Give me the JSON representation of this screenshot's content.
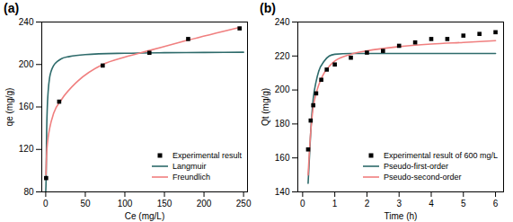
{
  "chart_data": [
    {
      "type": "line",
      "title": "(a)",
      "x_label": "Ce (mg/L)",
      "y_label": "qe (mg/g)",
      "xlim": [
        -5,
        255
      ],
      "xticks": [
        0,
        50,
        100,
        150,
        200,
        250
      ],
      "ylim": [
        80,
        240
      ],
      "yticks": [
        80,
        120,
        160,
        200,
        240
      ],
      "grid": false,
      "legend": "lower right",
      "series": [
        {
          "name": "Experimental result",
          "type": "scatter",
          "marker": "square",
          "color": "#000000",
          "x": [
            0.5,
            17,
            72,
            131,
            180,
            245
          ],
          "values": [
            93,
            165,
            199,
            211,
            224,
            234
          ]
        },
        {
          "name": "Langmuir",
          "type": "line",
          "line_style": "solid",
          "color": "#2e6b6b",
          "x": [
            0,
            0.5,
            1,
            2,
            3,
            5,
            7,
            10,
            15,
            20,
            30,
            50,
            100,
            150,
            200,
            250
          ],
          "values": [
            80,
            93,
            129,
            160,
            174,
            188,
            194,
            199,
            203,
            205.5,
            207.5,
            209.3,
            210.6,
            211.1,
            211.3,
            211.5
          ]
        },
        {
          "name": "Freundlich",
          "type": "line",
          "line_style": "solid",
          "color": "#f07f7f",
          "x": [
            0.3,
            1,
            3,
            5,
            10,
            20,
            40,
            72,
            100,
            130,
            180,
            245
          ],
          "values": [
            96,
            113,
            131,
            140,
            154,
            167,
            184,
            200,
            207,
            213,
            223,
            235
          ]
        }
      ]
    },
    {
      "type": "line",
      "title": "(b)",
      "x_label": "Time (h)",
      "y_label": "Qt (mg/g)",
      "xlim": [
        -0.15,
        6.25
      ],
      "xticks": [
        0,
        1,
        2,
        3,
        4,
        5,
        6
      ],
      "ylim": [
        140,
        240
      ],
      "yticks": [
        140,
        160,
        180,
        200,
        220,
        240
      ],
      "grid": false,
      "legend": "lower right",
      "series": [
        {
          "name": "Experimental result of 600 mg/L",
          "type": "scatter",
          "marker": "square",
          "color": "#000000",
          "x": [
            0.17,
            0.25,
            0.33,
            0.42,
            0.58,
            0.75,
            1,
            1.5,
            2,
            2.5,
            3,
            3.5,
            4,
            4.5,
            5,
            5.5,
            6
          ],
          "values": [
            165,
            182,
            191,
            198,
            206,
            212,
            215,
            219,
            222,
            223,
            226,
            228,
            230,
            230,
            232,
            233,
            234
          ]
        },
        {
          "name": "Pseudo-first-order",
          "type": "line",
          "line_style": "solid",
          "color": "#2e6b6b",
          "x": [
            0.17,
            0.25,
            0.33,
            0.42,
            0.5,
            0.67,
            0.83,
            1,
            1.5,
            2,
            3,
            4,
            5,
            6
          ],
          "values": [
            145,
            175,
            195,
            205,
            211,
            217,
            220,
            221,
            221.5,
            221.5,
            221.5,
            221.5,
            221.5,
            221.5
          ]
        },
        {
          "name": "Pseudo-second-order",
          "type": "line",
          "line_style": "solid",
          "color": "#f07f7f",
          "x": [
            0.17,
            0.25,
            0.33,
            0.42,
            0.5,
            0.67,
            0.83,
            1,
            1.5,
            2,
            3,
            4,
            5,
            6
          ],
          "values": [
            150,
            175,
            190,
            198,
            203,
            210,
            214,
            217,
            221,
            223,
            225.5,
            227,
            228,
            229
          ]
        }
      ]
    }
  ]
}
